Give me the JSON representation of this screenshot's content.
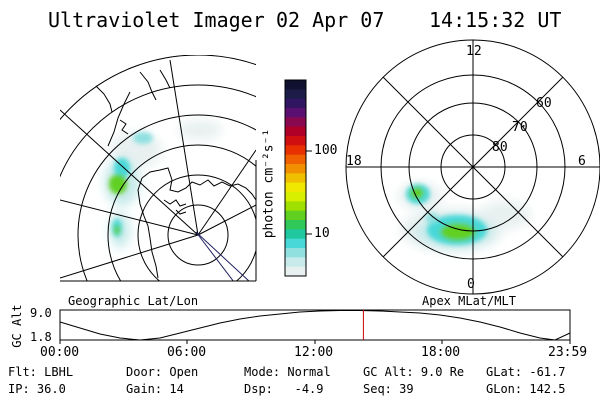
{
  "header": {
    "title": "Ultraviolet Imager",
    "date": "02 Apr 07",
    "time": "14:15:32 UT"
  },
  "colorbar": {
    "unit_label": "photon cm⁻²s⁻¹",
    "ticks": [
      "100",
      "10"
    ],
    "colors": [
      "#101030",
      "#1c1c48",
      "#301560",
      "#5a1070",
      "#8a0850",
      "#b00028",
      "#d01010",
      "#e83000",
      "#f06000",
      "#f09000",
      "#f0c000",
      "#f0e800",
      "#d8f000",
      "#a0e000",
      "#60d020",
      "#30c858",
      "#20c8a0",
      "#48d8d8",
      "#90e0e0",
      "#c8eaea",
      "#e8f0f0"
    ],
    "accent_colors": {
      "dark_top": "#101030",
      "cyan": "#20c8c8",
      "green": "#60d020"
    }
  },
  "left_map": {
    "label": "Geographic Lat/Lon"
  },
  "right_map": {
    "label": "Apex MLat/MLT",
    "mlt_labels": {
      "top": "12",
      "left": "18",
      "right": "6",
      "bottom": "0"
    },
    "mlat_labels": [
      "60",
      "70",
      "80"
    ]
  },
  "altitude_plot": {
    "ylabel": "GC Alt",
    "ytick_top": "9.0",
    "ytick_bottom": "1.8",
    "xticks": [
      "00:00",
      "06:00",
      "12:00",
      "18:00",
      "23:59"
    ],
    "current_time_fraction": 0.595,
    "marker_color": "#cc0000"
  },
  "info": {
    "filter_label": "Flt:",
    "filter_value": "LBHL",
    "door_label": "Door:",
    "door_value": "Open",
    "mode_label": "Mode:",
    "mode_value": "Normal",
    "gcalt_label": "GC Alt:",
    "gcalt_value": "9.0 Re",
    "glat_label": "GLat:",
    "glat_value": "-61.7",
    "ip_label": "IP:",
    "ip_value": "36.0",
    "gain_label": "Gain:",
    "gain_value": "14",
    "dsp_label": "Dsp:",
    "dsp_value": "-4.9",
    "seq_label": "Seq:",
    "seq_value": "39",
    "glon_label": "GLon:",
    "glon_value": "142.5"
  }
}
